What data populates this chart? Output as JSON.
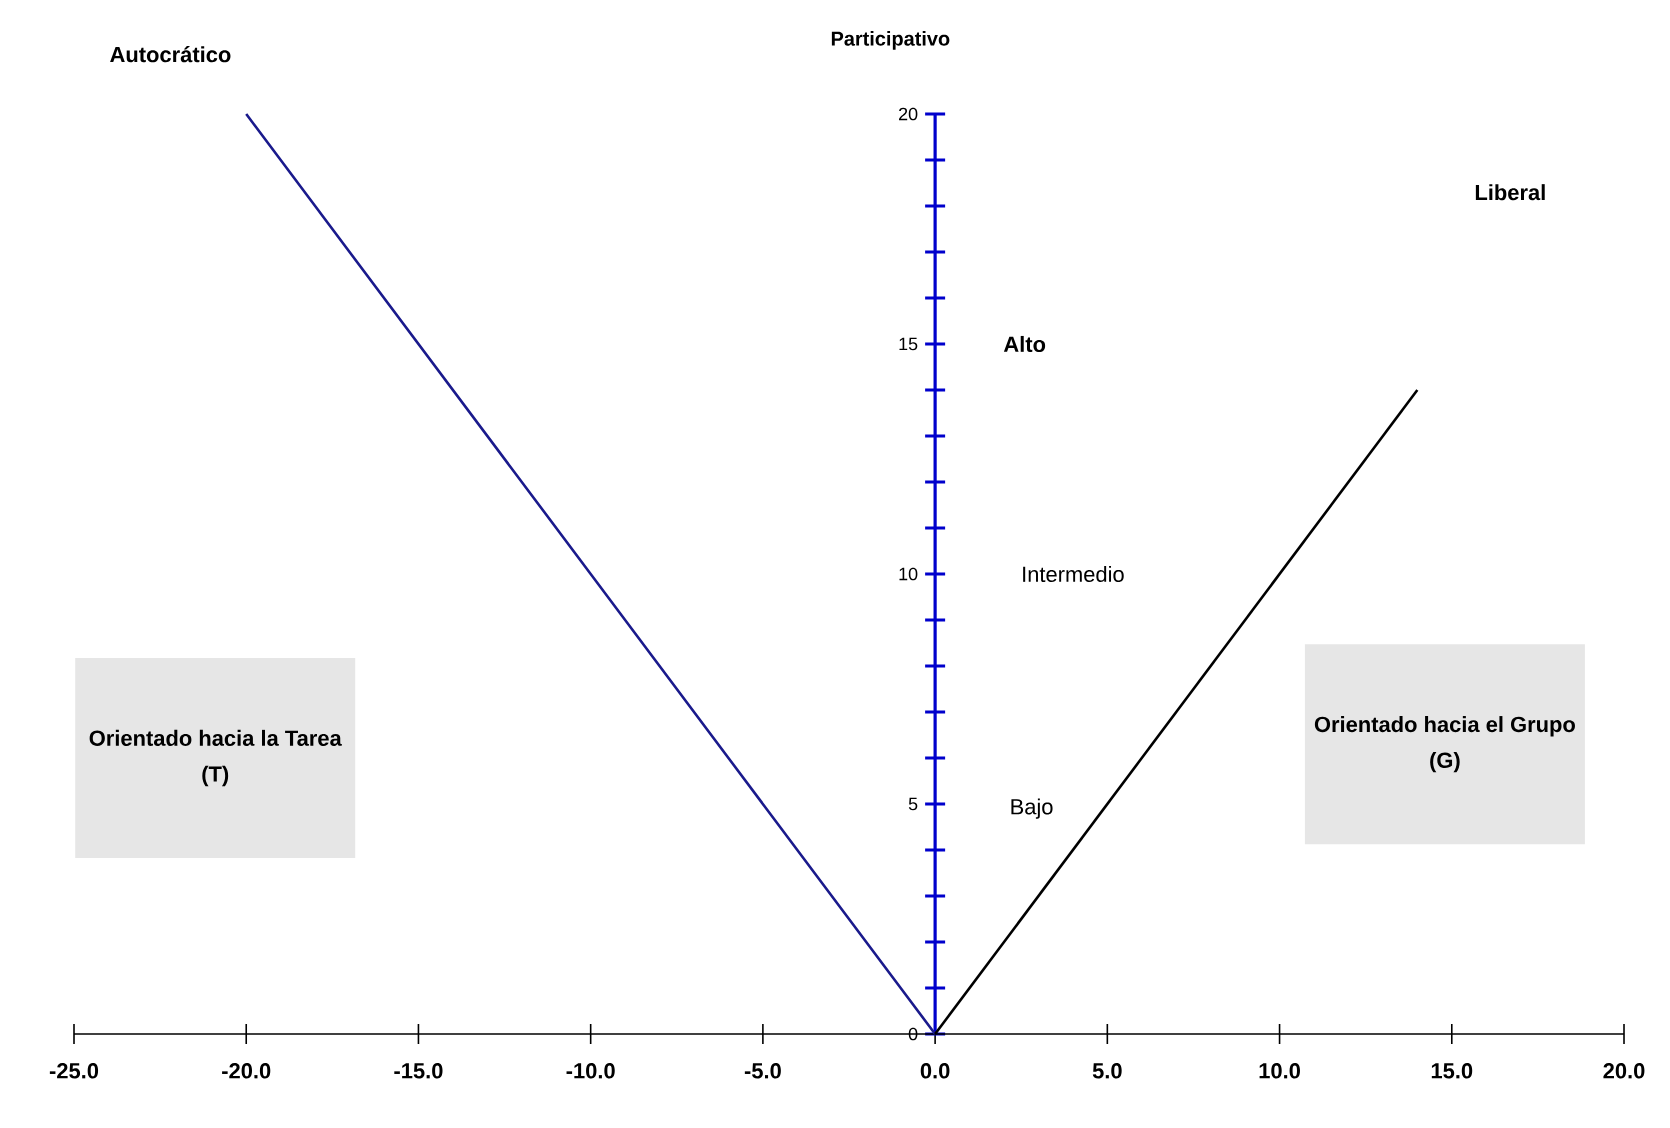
{
  "chart_data": {
    "type": "line",
    "ylabel": "Participativo",
    "xlim": [
      -25,
      20
    ],
    "ylim": [
      0,
      20
    ],
    "xticks": [
      {
        "value": -25,
        "label": "-25.0"
      },
      {
        "value": -20,
        "label": "-20.0"
      },
      {
        "value": -15,
        "label": "-15.0"
      },
      {
        "value": -10,
        "label": "-10.0"
      },
      {
        "value": -5,
        "label": "-5.0"
      },
      {
        "value": 0,
        "label": "0.0"
      },
      {
        "value": 5,
        "label": "5.0"
      },
      {
        "value": 10,
        "label": "10.0"
      },
      {
        "value": 15,
        "label": "15.0"
      },
      {
        "value": 20,
        "label": "20.0"
      }
    ],
    "yticks": [
      0,
      {
        "value": 1,
        "label": null
      },
      {
        "value": 2,
        "label": null
      },
      {
        "value": 3,
        "label": null
      },
      {
        "value": 4,
        "label": null
      },
      5,
      {
        "value": 6,
        "label": null
      },
      {
        "value": 7,
        "label": null
      },
      {
        "value": 8,
        "label": null
      },
      {
        "value": 9,
        "label": null
      },
      10,
      {
        "value": 11,
        "label": null
      },
      {
        "value": 12,
        "label": null
      },
      {
        "value": 13,
        "label": null
      },
      {
        "value": 14,
        "label": null
      },
      15,
      {
        "value": 16,
        "label": null
      },
      {
        "value": 17,
        "label": null
      },
      {
        "value": 18,
        "label": null
      },
      {
        "value": 19,
        "label": null
      },
      20
    ],
    "series": [
      {
        "color": "#1a1a8c",
        "x": [
          -20,
          -10,
          -1,
          0
        ],
        "values": [
          20,
          10,
          1,
          0
        ]
      },
      {
        "color": "#000000",
        "x": [
          0,
          14
        ],
        "values": [
          0,
          14
        ]
      }
    ],
    "annotations": [
      "Autocrático",
      "Liberal",
      "Alto",
      "Intermedio",
      "Bajo",
      "Orientado hacia la Tarea (T)",
      "Orientado hacia el Grupo (G)"
    ]
  }
}
